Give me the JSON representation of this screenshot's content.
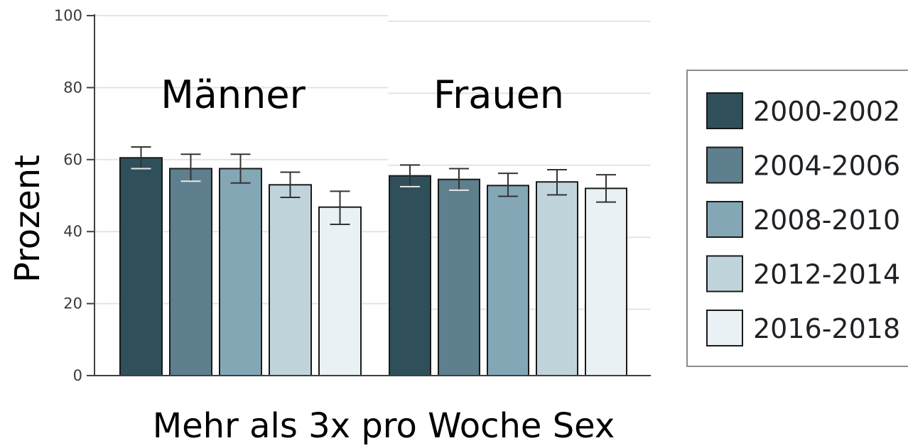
{
  "chart_data": {
    "type": "bar",
    "title": "",
    "xlabel": "Mehr als 3x pro Woche Sex",
    "ylabel": "Prozent",
    "ylim": [
      0,
      100
    ],
    "yticks": [
      "0",
      "20",
      "40",
      "60",
      "80",
      "100"
    ],
    "grid": true,
    "legend_position": "right",
    "groups": [
      "Männer",
      "Frauen"
    ],
    "series": [
      {
        "name": "2000-2002",
        "color": "#2f4f5a",
        "values": [
          60.5,
          55.5
        ],
        "error": [
          [
            57.5,
            63.5
          ],
          [
            52.5,
            58.5
          ]
        ]
      },
      {
        "name": "2004-2006",
        "color": "#5e7f8d",
        "values": [
          57.5,
          54.5
        ],
        "error": [
          [
            54.0,
            61.5
          ],
          [
            51.5,
            57.5
          ]
        ]
      },
      {
        "name": "2008-2010",
        "color": "#84a7b6",
        "values": [
          57.5,
          52.8
        ],
        "error": [
          [
            53.5,
            61.5
          ],
          [
            49.8,
            56.2
          ]
        ]
      },
      {
        "name": "2012-2014",
        "color": "#c0d4dc",
        "values": [
          53.0,
          53.8
        ],
        "error": [
          [
            49.5,
            56.5
          ],
          [
            50.2,
            57.2
          ]
        ]
      },
      {
        "name": "2016-2018",
        "color": "#e9f1f4",
        "values": [
          46.8,
          52.0
        ],
        "error": [
          [
            42.0,
            51.2
          ],
          [
            48.2,
            55.8
          ]
        ]
      }
    ]
  }
}
